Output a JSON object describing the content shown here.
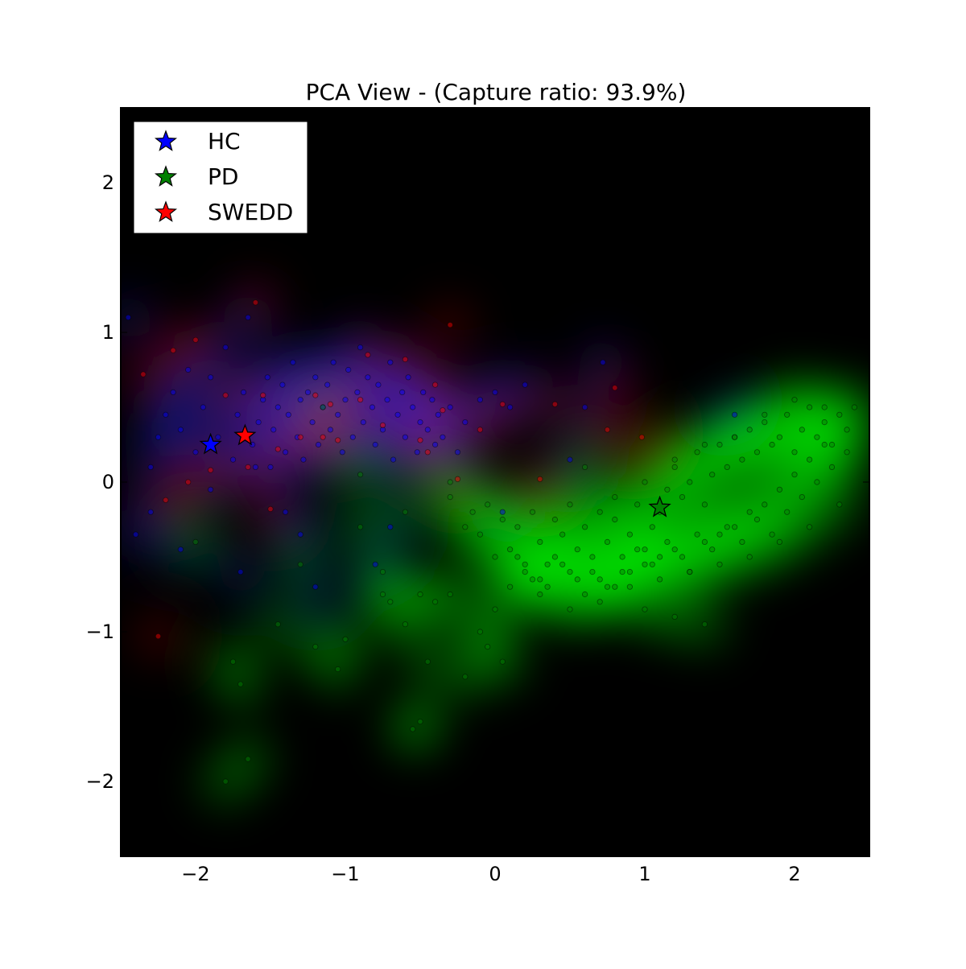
{
  "chart_data": {
    "type": "scatter",
    "title": "PCA View - (Capture ratio: 93.9%)",
    "xlabel": "",
    "ylabel": "",
    "xlim": [
      -2.5,
      2.5
    ],
    "ylim": [
      -2.5,
      2.5
    ],
    "xticks": [
      -2,
      -1,
      0,
      1,
      2
    ],
    "yticks": [
      -2,
      -1,
      0,
      1,
      2
    ],
    "grid": false,
    "background": "density-heatmap",
    "legend_position": "top-left",
    "series": [
      {
        "name": "HC",
        "color": "#0000ff",
        "centroid": {
          "x": -1.9,
          "y": 0.25
        },
        "x": [
          -2.45,
          -2.3,
          -2.25,
          -2.2,
          -2.15,
          -2.1,
          -2.05,
          -2.0,
          -1.95,
          -1.9,
          -1.85,
          -1.8,
          -1.75,
          -1.72,
          -1.68,
          -1.65,
          -1.62,
          -1.58,
          -1.55,
          -1.52,
          -1.5,
          -1.48,
          -1.45,
          -1.42,
          -1.4,
          -1.38,
          -1.35,
          -1.32,
          -1.3,
          -1.28,
          -1.25,
          -1.22,
          -1.2,
          -1.18,
          -1.15,
          -1.12,
          -1.1,
          -1.08,
          -1.05,
          -1.02,
          -1.0,
          -0.98,
          -0.95,
          -0.92,
          -0.9,
          -0.88,
          -0.85,
          -0.82,
          -0.8,
          -0.78,
          -0.75,
          -0.72,
          -0.7,
          -0.68,
          -0.65,
          -0.62,
          -0.6,
          -0.58,
          -0.55,
          -0.52,
          -0.5,
          -0.48,
          -0.45,
          -0.42,
          -0.4,
          -0.38,
          -0.35,
          -0.3,
          -0.25,
          -0.2,
          -0.1,
          0.0,
          0.1,
          0.2,
          0.5,
          0.6,
          0.72,
          1.6,
          -2.4,
          -2.3,
          -2.1,
          -1.9,
          -1.7,
          -1.6,
          -1.4,
          -1.3,
          -1.2,
          -0.7,
          -0.8,
          0.05
        ],
        "y": [
          1.1,
          0.1,
          0.3,
          0.45,
          0.6,
          0.35,
          0.75,
          0.2,
          0.5,
          0.7,
          0.3,
          0.9,
          0.15,
          0.45,
          0.6,
          1.1,
          0.25,
          0.4,
          0.55,
          0.7,
          0.1,
          0.35,
          0.5,
          0.65,
          0.2,
          0.45,
          0.8,
          0.3,
          0.55,
          0.15,
          0.6,
          0.4,
          0.7,
          0.25,
          0.5,
          0.65,
          0.35,
          0.8,
          0.45,
          0.2,
          0.55,
          0.75,
          0.3,
          0.6,
          0.9,
          0.4,
          0.7,
          0.5,
          0.25,
          0.65,
          0.35,
          0.55,
          0.8,
          0.15,
          0.45,
          0.6,
          0.3,
          0.7,
          0.5,
          0.2,
          0.4,
          0.6,
          0.35,
          0.55,
          0.25,
          0.45,
          0.3,
          0.5,
          0.2,
          0.4,
          0.55,
          0.6,
          0.5,
          0.65,
          0.15,
          0.5,
          0.8,
          0.45,
          -0.35,
          -0.2,
          -0.45,
          -0.05,
          -0.6,
          0.1,
          -0.2,
          -0.35,
          -0.7,
          -0.3,
          -0.55,
          -0.2
        ]
      },
      {
        "name": "PD",
        "color": "#008000",
        "centroid": {
          "x": 1.1,
          "y": -0.17
        },
        "x": [
          -1.15,
          -0.9,
          -0.75,
          -0.6,
          -0.5,
          -0.4,
          -0.3,
          -0.2,
          -0.15,
          -0.1,
          -0.05,
          0.0,
          0.05,
          0.1,
          0.15,
          0.2,
          0.25,
          0.3,
          0.35,
          0.4,
          0.45,
          0.5,
          0.55,
          0.6,
          0.65,
          0.7,
          0.75,
          0.8,
          0.85,
          0.9,
          0.95,
          1.0,
          1.05,
          1.1,
          1.15,
          1.2,
          1.25,
          1.3,
          1.35,
          1.4,
          1.45,
          1.5,
          1.55,
          1.6,
          1.65,
          1.7,
          1.75,
          1.8,
          1.85,
          1.9,
          1.95,
          2.0,
          2.05,
          2.1,
          2.15,
          2.2,
          2.25,
          2.3,
          2.35,
          2.4,
          0.45,
          0.55,
          0.65,
          0.75,
          0.85,
          0.95,
          1.05,
          1.15,
          1.25,
          1.35,
          1.45,
          1.55,
          1.65,
          1.75,
          1.85,
          1.95,
          2.05,
          2.15,
          2.25,
          2.35,
          0.1,
          0.2,
          0.3,
          0.4,
          0.5,
          0.6,
          0.7,
          0.8,
          0.9,
          1.0,
          1.1,
          1.2,
          1.3,
          1.4,
          1.5,
          1.6,
          1.7,
          1.8,
          1.9,
          2.0,
          2.1,
          2.2,
          0.3,
          0.5,
          0.7,
          0.9,
          1.1,
          1.3,
          1.5,
          1.7,
          1.9,
          2.1,
          2.3,
          0.6,
          0.8,
          1.0,
          1.2,
          1.4,
          1.6,
          1.8,
          2.0,
          2.2,
          0.0,
          -0.1,
          -0.05,
          0.05,
          -0.2,
          -0.45,
          -0.5,
          -0.55,
          -0.7,
          -0.75,
          -1.3,
          -1.45,
          -1.0,
          -1.05,
          -1.2,
          -1.75,
          -1.7,
          -1.65,
          -1.8,
          -2.0,
          -0.3,
          0.15,
          0.25,
          0.35,
          -0.6,
          -0.9,
          -0.3,
          1.0,
          1.2,
          1.4
        ],
        "y": [
          0.5,
          0.05,
          -0.6,
          -0.2,
          -0.75,
          -0.8,
          0.0,
          -0.3,
          -0.2,
          -0.35,
          -0.15,
          -0.5,
          -0.25,
          -0.45,
          -0.3,
          -0.6,
          -0.2,
          -0.4,
          -0.55,
          -0.25,
          -0.35,
          -0.15,
          -0.45,
          -0.3,
          -0.6,
          -0.2,
          -0.4,
          -0.25,
          -0.5,
          -0.35,
          -0.15,
          -0.45,
          -0.3,
          -0.2,
          -0.05,
          0.1,
          -0.1,
          0.0,
          0.2,
          -0.15,
          0.05,
          0.25,
          0.1,
          0.3,
          0.15,
          0.35,
          0.2,
          0.4,
          0.25,
          0.3,
          0.45,
          0.2,
          0.35,
          0.5,
          0.3,
          0.4,
          0.25,
          0.45,
          0.35,
          0.5,
          -0.55,
          -0.65,
          -0.5,
          -0.7,
          -0.6,
          -0.45,
          -0.55,
          -0.4,
          -0.5,
          -0.35,
          -0.45,
          -0.3,
          -0.4,
          -0.25,
          -0.35,
          -0.2,
          -0.1,
          0.0,
          0.1,
          0.2,
          -0.7,
          -0.55,
          -0.65,
          -0.5,
          -0.6,
          -0.75,
          -0.65,
          -0.7,
          -0.6,
          -0.55,
          -0.5,
          -0.45,
          -0.6,
          -0.4,
          -0.35,
          -0.3,
          -0.2,
          -0.15,
          -0.05,
          0.05,
          0.15,
          0.25,
          -0.75,
          -0.85,
          -0.8,
          -0.7,
          -0.65,
          -0.6,
          -0.55,
          -0.5,
          -0.4,
          -0.3,
          -0.15,
          0.1,
          -0.1,
          0.0,
          0.15,
          0.25,
          0.3,
          0.45,
          0.55,
          0.5,
          -0.85,
          -1.0,
          -1.1,
          -1.2,
          -1.3,
          -1.2,
          -1.6,
          -1.65,
          -0.8,
          -0.75,
          -0.55,
          -0.95,
          -1.05,
          -1.25,
          -1.1,
          -1.2,
          -1.35,
          -1.85,
          -2.0,
          -0.4,
          -0.75,
          -0.5,
          -0.65,
          -0.7,
          -0.95,
          -0.3,
          -0.1,
          -0.85,
          -0.9,
          -0.95
        ]
      },
      {
        "name": "SWEDD",
        "color": "#ff0000",
        "centroid": {
          "x": -1.67,
          "y": 0.31
        },
        "x": [
          -2.25,
          -2.35,
          -2.2,
          -2.15,
          -2.05,
          -2.0,
          -1.9,
          -1.8,
          -1.6,
          -1.55,
          -1.5,
          -1.45,
          -1.3,
          -1.2,
          -1.15,
          -1.1,
          -1.05,
          -0.9,
          -0.85,
          -0.75,
          -0.6,
          -0.5,
          -0.45,
          -0.4,
          -0.35,
          -0.3,
          -0.25,
          -0.1,
          0.05,
          0.3,
          0.4,
          0.8,
          0.98,
          0.75,
          -1.65
        ],
        "y": [
          -1.03,
          0.72,
          -0.12,
          0.88,
          0.0,
          0.95,
          0.08,
          0.58,
          1.2,
          0.58,
          -0.18,
          0.22,
          0.3,
          0.58,
          0.3,
          0.52,
          0.28,
          0.55,
          0.85,
          0.38,
          0.82,
          0.28,
          0.2,
          0.65,
          0.48,
          1.05,
          0.02,
          0.35,
          0.52,
          0.02,
          0.52,
          0.63,
          0.3,
          0.35,
          0.1
        ]
      }
    ]
  }
}
